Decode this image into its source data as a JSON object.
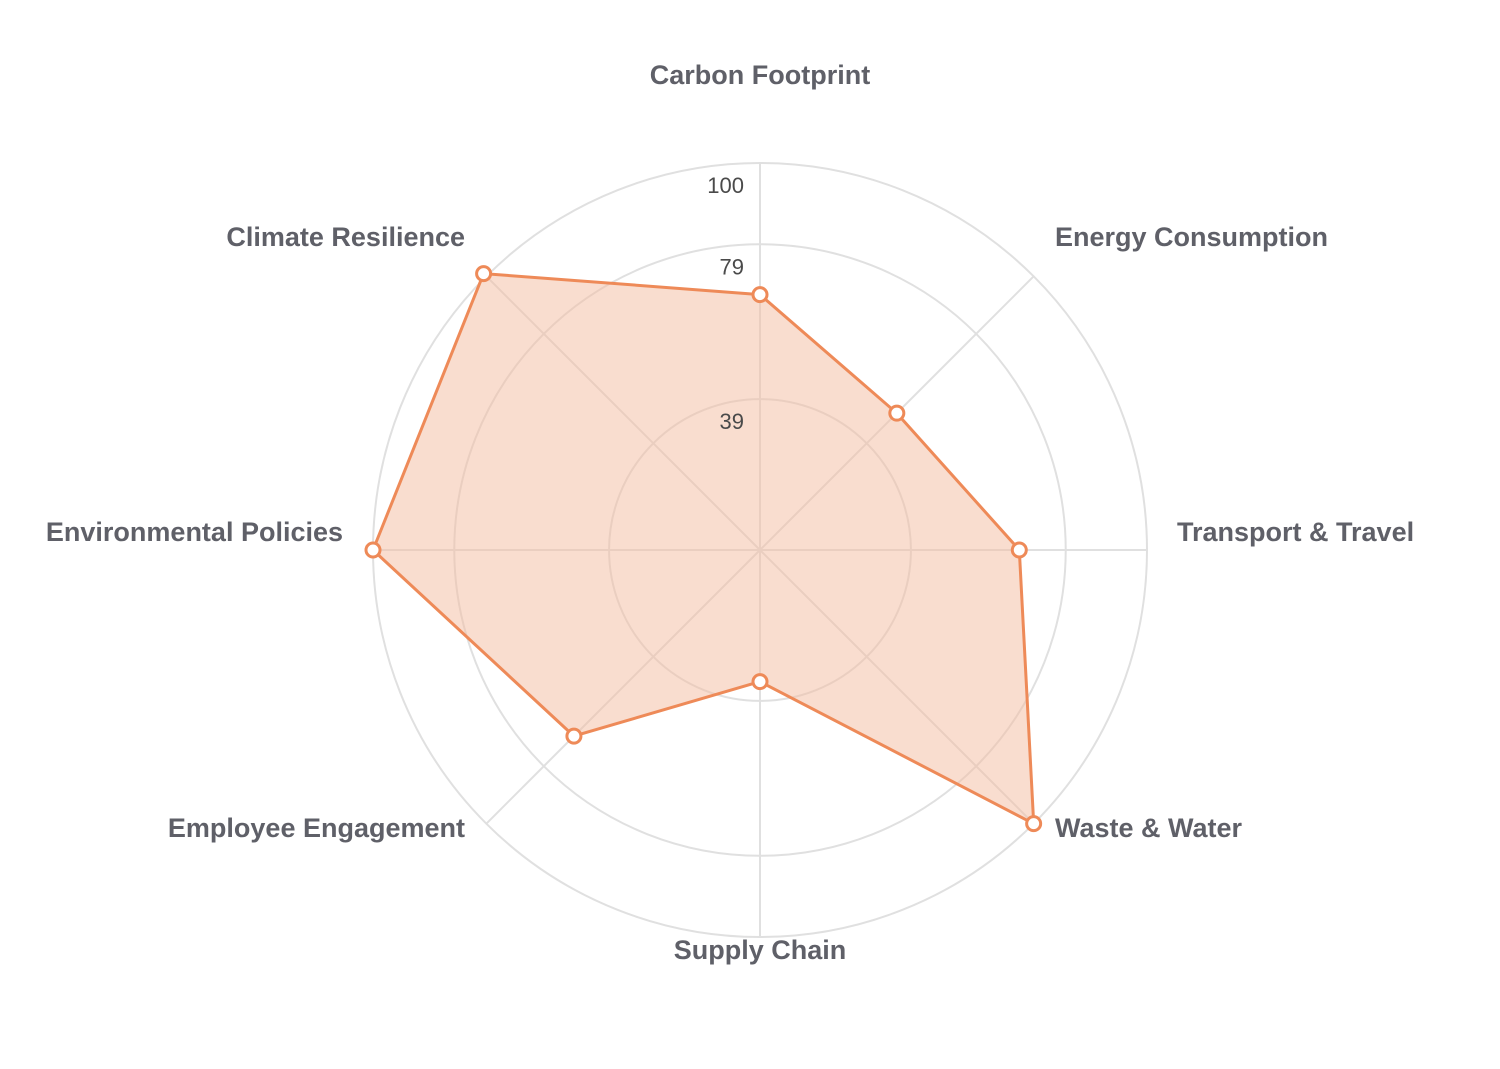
{
  "chart_data": {
    "type": "radar",
    "title": "",
    "categories": [
      "Carbon Footprint",
      "Energy Consumption",
      "Transport & Travel",
      "Waste & Water",
      "Supply Chain",
      "Employee Engagement",
      "Environmental Policies",
      "Climate Resilience"
    ],
    "series": [
      {
        "values": [
          66,
          50,
          67,
          100,
          34,
          68,
          100,
          101
        ]
      }
    ],
    "radial_ticks": [
      "39",
      "79",
      "100"
    ],
    "tick_values": [
      39,
      79,
      100
    ],
    "range": [
      0,
      100
    ],
    "grid": true,
    "legend": "none",
    "colors": {
      "line": "#ee8a58",
      "fill": "#f4bc9f",
      "marker_fill": "#ffffff",
      "grid": "#e0e0e0",
      "label": "#5f6068",
      "tick": "#4a4a4a"
    }
  }
}
